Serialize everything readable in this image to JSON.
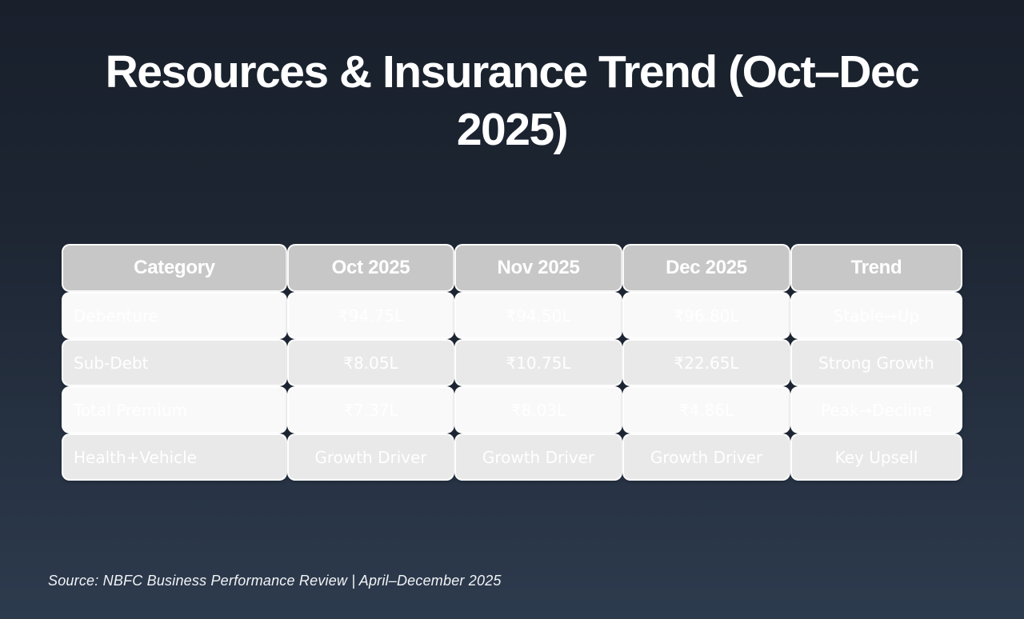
{
  "slide": {
    "title": "Resources & Insurance Trend (Oct–Dec 2025)",
    "title_lines": [
      "Resources & Insurance Trend (Oct–Dec",
      "2025)"
    ],
    "source": "Source: NBFC Business Performance Review | April–December 2025"
  },
  "table": {
    "columns": [
      "Category",
      "Oct 2025",
      "Nov 2025",
      "Dec 2025",
      "Trend"
    ],
    "rows": [
      [
        "Debenture",
        "₹94.75L",
        "₹94.50L",
        "₹96.80L",
        "Stable→Up"
      ],
      [
        "Sub-Debt",
        "₹8.05L",
        "₹10.75L",
        "₹22.65L",
        "Strong Growth"
      ],
      [
        "Total Premium",
        "₹7.37L",
        "₹8.03L",
        "₹4.86L",
        "Peak→Decline"
      ],
      [
        "Health+Vehicle",
        "Growth Driver",
        "Growth Driver",
        "Growth Driver",
        "Key Upsell"
      ]
    ]
  },
  "chart_data": {
    "type": "table",
    "title": "Resources & Insurance Trend (Oct–Dec 2025)",
    "columns": [
      "Category",
      "Oct 2025",
      "Nov 2025",
      "Dec 2025",
      "Trend"
    ],
    "categories": [
      "Oct 2025",
      "Nov 2025",
      "Dec 2025"
    ],
    "series": [
      {
        "name": "Debenture",
        "values": [
          94.75,
          94.5,
          96.8
        ],
        "unit": "₹L",
        "trend": "Stable→Up"
      },
      {
        "name": "Sub-Debt",
        "values": [
          8.05,
          10.75,
          22.65
        ],
        "unit": "₹L",
        "trend": "Strong Growth"
      },
      {
        "name": "Total Premium",
        "values": [
          7.37,
          8.03,
          4.86
        ],
        "unit": "₹L",
        "trend": "Peak→Decline"
      },
      {
        "name": "Health+Vehicle",
        "values": [
          "Growth Driver",
          "Growth Driver",
          "Growth Driver"
        ],
        "trend": "Key Upsell"
      }
    ],
    "source": "Source: NBFC Business Performance Review | April–December 2025"
  },
  "colors": {
    "background_top": "#19202c",
    "background_bottom": "#2d3b4e",
    "header_cell": "#c7c7c7",
    "row_light": "#f9f9f9",
    "row_dark": "#e9e9e9",
    "cell_border": "#ffffff",
    "diamond": "#1c2431",
    "text": "#ffffff"
  }
}
